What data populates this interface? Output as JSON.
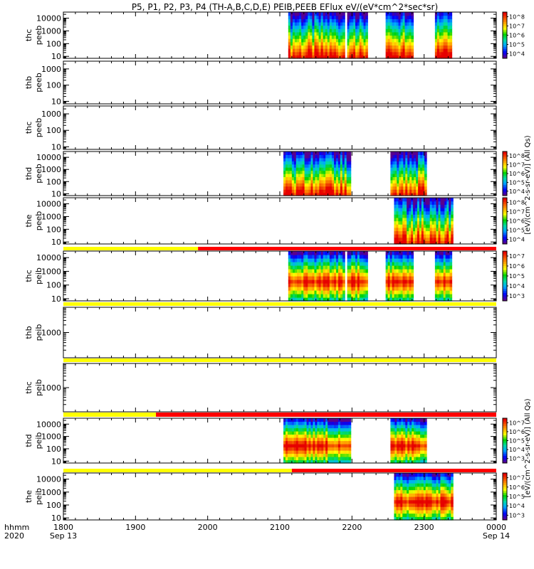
{
  "title": "P5, P1, P2, P3, P4 (TH-A,B,C,D,E) PEIB,PEEB EFlux eV/(eV*cm^2*sec*sr)",
  "units_label_electron": "[eV/(cm^2-s-sr-eV)] (All Qs)",
  "units_label_ion": "[eV/(cm^2-s-sr-eV)] (All Qs)",
  "chart_data": {
    "type": "heatmap",
    "title": "P5, P1, P2, P3, P4 (TH-A,B,C,D,E) PEIB,PEEB EFlux eV/(eV*cm^2*sec*sr)",
    "x_axis": {
      "range_hhmm": [
        "1800",
        "0000"
      ],
      "ticks": [
        "1800",
        "1900",
        "2000",
        "2100",
        "2200",
        "2300",
        "0000"
      ],
      "date_labels": {
        "1800": "Sep 13",
        "0000": "Sep 14"
      },
      "row_label_1": "hhmm",
      "row_label_2": "2020"
    },
    "panels": [
      {
        "name": "thc peeb",
        "ylabel": "thc\npeeb",
        "yscale": "log",
        "yticks": [
          "10",
          "100",
          "1000",
          "10000"
        ],
        "colorbar": {
          "labels": [
            "10^4",
            "10^5",
            "10^6",
            "10^7",
            "10^8"
          ]
        },
        "data_intervals": [
          [
            "2107",
            "2154"
          ],
          [
            "2156",
            "2213"
          ],
          [
            "2228",
            "2251"
          ],
          [
            "2269",
            "2283"
          ]
        ]
      },
      {
        "name": "thb peeb",
        "ylabel": "thb\npeeb",
        "yscale": "log",
        "yticks": [
          "10",
          "100",
          "1000"
        ],
        "data_intervals": []
      },
      {
        "name": "thc peeb",
        "ylabel": "thc\npeeb",
        "yscale": "log",
        "yticks": [
          "10",
          "100",
          "1000"
        ],
        "data_intervals": []
      },
      {
        "name": "thd peeb",
        "ylabel": "thd\npeeb",
        "yscale": "log",
        "yticks": [
          "10",
          "100",
          "1000",
          "10000"
        ],
        "colorbar": {
          "labels": [
            "10^4",
            "10^5",
            "10^6",
            "10^7",
            "10^8"
          ]
        },
        "data_intervals": [
          [
            "2103",
            "2159"
          ],
          [
            "2232",
            "2262"
          ]
        ]
      },
      {
        "name": "the peeb",
        "ylabel": "the\npeeb",
        "yscale": "log",
        "yticks": [
          "10",
          "100",
          "1000",
          "10000"
        ],
        "colorbar": {
          "labels": [
            "10^4",
            "10^5",
            "10^6",
            "10^7",
            "10^8"
          ]
        },
        "data_intervals": [
          [
            "2235",
            "2284"
          ]
        ]
      },
      {
        "name": "thc peib",
        "ylabel": "thc\npeib",
        "yscale": "log",
        "yticks": [
          "10",
          "100",
          "1000",
          "10000"
        ],
        "colorbar": {
          "labels": [
            "10^3",
            "10^4",
            "10^5",
            "10^6",
            "10^7"
          ]
        },
        "data_intervals": [
          [
            "2107",
            "2154"
          ],
          [
            "2156",
            "2213"
          ],
          [
            "2228",
            "2251"
          ],
          [
            "2269",
            "2283"
          ]
        ]
      },
      {
        "name": "thb peib",
        "ylabel": "thb\npeib",
        "yscale": "log",
        "yticks": [
          "1000"
        ],
        "data_intervals": []
      },
      {
        "name": "thc peib",
        "ylabel": "thc\npeib",
        "yscale": "log",
        "yticks": [
          "1000"
        ],
        "data_intervals": []
      },
      {
        "name": "thd peib",
        "ylabel": "thd\npeib",
        "yscale": "log",
        "yticks": [
          "10",
          "100",
          "1000",
          "10000"
        ],
        "colorbar": {
          "labels": [
            "10^3",
            "10^4",
            "10^5",
            "10^6",
            "10^7"
          ]
        },
        "data_intervals": [
          [
            "2103",
            "2159"
          ],
          [
            "2232",
            "2262"
          ]
        ]
      },
      {
        "name": "the peib",
        "ylabel": "the\npeib",
        "yscale": "log",
        "yticks": [
          "10",
          "100",
          "1000",
          "10000"
        ],
        "colorbar": {
          "labels": [
            "10^3",
            "10^4",
            "10^5",
            "10^6",
            "10^7"
          ]
        },
        "data_intervals": [
          [
            "2235",
            "2284"
          ]
        ]
      }
    ],
    "mode_bars": [
      {
        "segments": [
          {
            "from": "1800",
            "to": "1952",
            "color": "#ffff00"
          },
          {
            "from": "1952",
            "to": "0000",
            "color": "#ff0000"
          }
        ]
      },
      {
        "segments": [
          {
            "from": "1800",
            "to": "0000",
            "color": "#ffff00"
          }
        ]
      },
      {
        "segments": [
          {
            "from": "1800",
            "to": "0000",
            "color": "#ffff00"
          }
        ]
      },
      {
        "segments": [
          {
            "from": "1800",
            "to": "1917",
            "color": "#ffff00"
          },
          {
            "from": "1917",
            "to": "0000",
            "color": "#ff0000"
          }
        ]
      },
      {
        "segments": [
          {
            "from": "1800",
            "to": "2070",
            "color": "#ffff00"
          },
          {
            "from": "2070",
            "to": "0000",
            "color": "#ff0000"
          }
        ]
      }
    ]
  }
}
